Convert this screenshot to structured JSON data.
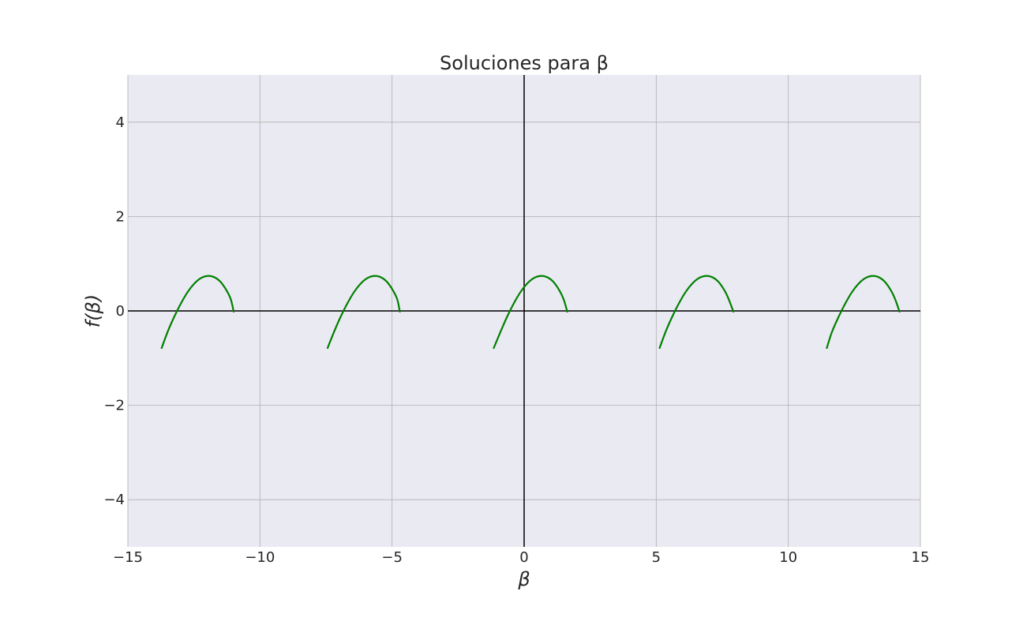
{
  "chart_data": {
    "type": "line",
    "title": "Soluciones para β",
    "xlabel": "β",
    "ylabel": "f(β)",
    "xlim": [
      -15,
      15
    ],
    "ylim": [
      -5,
      5
    ],
    "xticks": [
      -15,
      -10,
      -5,
      0,
      5,
      10,
      15
    ],
    "xtick_labels": [
      "−15",
      "−10",
      "−5",
      "0",
      "5",
      "10",
      "15"
    ],
    "yticks": [
      -4,
      -2,
      0,
      2,
      4
    ],
    "ytick_labels": [
      "−4",
      "−2",
      "0",
      "2",
      "4"
    ],
    "grid": true,
    "zero_lines": true,
    "colors": {
      "background": "#eaeaf2",
      "grid": "#b0b0b0",
      "zero_line": "#000000",
      "series": "#008000"
    },
    "series": [
      {
        "color": "#008000",
        "segments": [
          {
            "x": [
              -13.73,
              -13.5,
              -13.25,
              -13.0,
              -12.75,
              -12.5,
              -12.25,
              -12.0,
              -11.75,
              -11.5,
              -11.25,
              -11.1,
              -10.99
            ],
            "y": [
              -0.8,
              -0.45,
              -0.13,
              0.15,
              0.39,
              0.57,
              0.69,
              0.74,
              0.72,
              0.62,
              0.42,
              0.24,
              -0.03
            ]
          },
          {
            "x": [
              -7.45,
              -7.2,
              -6.95,
              -6.7,
              -6.45,
              -6.2,
              -5.95,
              -5.7,
              -5.45,
              -5.2,
              -4.95,
              -4.8,
              -4.7
            ],
            "y": [
              -0.8,
              -0.45,
              -0.13,
              0.15,
              0.39,
              0.57,
              0.69,
              0.74,
              0.72,
              0.62,
              0.42,
              0.24,
              -0.03
            ]
          },
          {
            "x": [
              -1.16,
              -0.9,
              -0.65,
              -0.4,
              -0.15,
              0.1,
              0.35,
              0.6,
              0.85,
              1.1,
              1.35,
              1.5,
              1.64
            ],
            "y": [
              -0.8,
              -0.45,
              -0.13,
              0.15,
              0.39,
              0.57,
              0.69,
              0.74,
              0.72,
              0.62,
              0.42,
              0.24,
              -0.03
            ]
          },
          {
            "x": [
              5.12,
              5.35,
              5.6,
              5.85,
              6.1,
              6.35,
              6.6,
              6.85,
              7.1,
              7.35,
              7.6,
              7.75,
              7.93
            ],
            "y": [
              -0.8,
              -0.45,
              -0.13,
              0.15,
              0.39,
              0.57,
              0.69,
              0.74,
              0.72,
              0.62,
              0.42,
              0.24,
              -0.03
            ]
          },
          {
            "x": [
              11.45,
              11.65,
              11.9,
              12.15,
              12.4,
              12.65,
              12.9,
              13.15,
              13.4,
              13.65,
              13.9,
              14.05,
              14.22
            ],
            "y": [
              -0.8,
              -0.45,
              -0.13,
              0.15,
              0.39,
              0.57,
              0.69,
              0.74,
              0.72,
              0.62,
              0.42,
              0.24,
              -0.03
            ]
          }
        ]
      }
    ]
  }
}
